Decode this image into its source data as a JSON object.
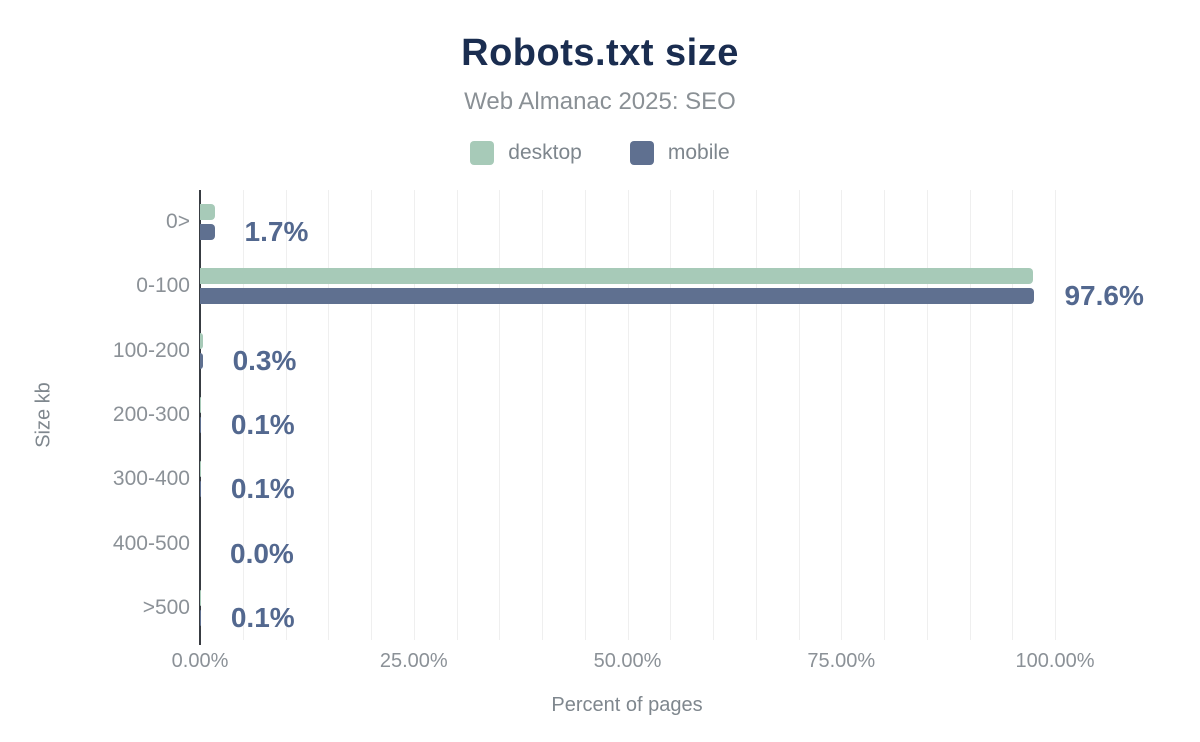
{
  "chart_data": {
    "type": "bar",
    "orientation": "horizontal",
    "title": "Robots.txt size",
    "subtitle": "Web Almanac 2025: SEO",
    "categories": [
      "0>",
      "0-100",
      "100-200",
      "200-300",
      "300-400",
      "400-500",
      ">500"
    ],
    "series": [
      {
        "name": "desktop",
        "color": "#a7cab8",
        "values": [
          1.7,
          97.4,
          0.3,
          0.1,
          0.1,
          0.0,
          0.1
        ]
      },
      {
        "name": "mobile",
        "color": "#5f7090",
        "values": [
          1.7,
          97.6,
          0.3,
          0.1,
          0.1,
          0.0,
          0.1
        ]
      }
    ],
    "data_labels": [
      "1.7%",
      "97.6%",
      "0.3%",
      "0.1%",
      "0.1%",
      "0.0%",
      "0.1%"
    ],
    "xlabel": "Percent of pages",
    "ylabel": "Size kb",
    "xlim": [
      0,
      100
    ],
    "x_ticks": [
      {
        "value": 0,
        "label": "0.00%"
      },
      {
        "value": 25,
        "label": "25.00%"
      },
      {
        "value": 50,
        "label": "50.00%"
      },
      {
        "value": 75,
        "label": "75.00%"
      },
      {
        "value": 100,
        "label": "100.00%"
      }
    ],
    "minor_grid_step": 5,
    "grid": "vertical-minor",
    "legend_position": "top"
  },
  "colors": {
    "title": "#1a2d50",
    "subtitle": "#8a9095",
    "value_label": "#53688f",
    "axis_text": "#8b9197",
    "gridline": "#efefef",
    "axis_line": "#383c42",
    "background": "#ffffff"
  }
}
